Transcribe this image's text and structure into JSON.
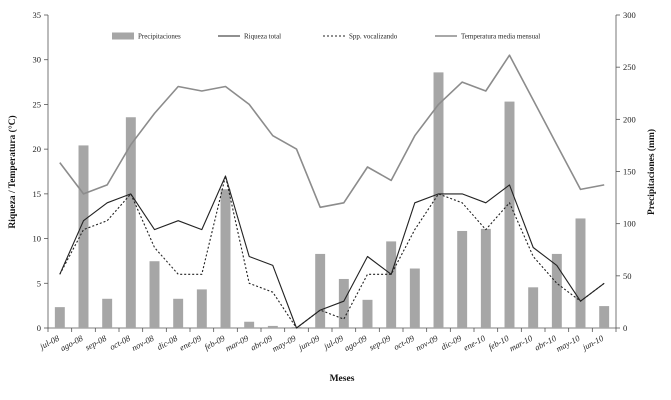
{
  "chart_data": {
    "type": "bar+line",
    "title": "",
    "xlabel": "Meses",
    "ylabel_left": "Riqueza / Temperatura (°C)",
    "ylabel_right": "Precipitaciones (mm)",
    "ylim_left": [
      0,
      35
    ],
    "ylim_right": [
      0,
      300
    ],
    "yticks_left": [
      "0",
      "5",
      "10",
      "15",
      "20",
      "25",
      "30",
      "35"
    ],
    "yticks_right": [
      "0",
      "50",
      "100",
      "150",
      "200",
      "250",
      "300"
    ],
    "legend_position": "top",
    "grid": false,
    "categories": [
      "jul-08",
      "ago-08",
      "sep-08",
      "oct-08",
      "nov-08",
      "dic-08",
      "ene-09",
      "feb-09",
      "mar-09",
      "abr-09",
      "may-09",
      "jun-09",
      "jul-09",
      "ago-09",
      "sep-09",
      "oct-09",
      "nov-09",
      "dic-09",
      "ene-10",
      "feb-10",
      "mar-10",
      "abr-10",
      "may-10",
      "jun-10"
    ],
    "series": [
      {
        "name": "Precipitaciones",
        "kind": "bar",
        "axis": "right",
        "color": "#a6a6a6",
        "values": [
          20,
          175,
          28,
          202,
          64,
          28,
          37,
          133,
          6,
          2,
          1,
          71,
          47,
          27,
          83,
          57,
          245,
          93,
          95,
          217,
          39,
          71,
          105,
          21
        ]
      },
      {
        "name": "Riqueza total",
        "kind": "line",
        "axis": "left",
        "color": "#222222",
        "dash": "",
        "values": [
          6,
          12,
          14,
          15,
          11,
          12,
          11,
          17,
          8,
          7,
          0,
          2,
          3,
          8,
          6,
          14,
          15,
          15,
          14,
          16,
          9,
          7,
          3,
          5
        ]
      },
      {
        "name": "Spp. vocalizando",
        "kind": "line",
        "axis": "left",
        "color": "#222222",
        "dash": "2,2",
        "values": [
          6,
          11,
          12,
          15,
          9,
          6,
          6,
          17,
          5,
          4,
          0,
          2,
          1,
          6,
          6,
          11,
          15,
          14,
          11,
          14,
          8,
          5,
          3,
          5
        ]
      },
      {
        "name": "Temperatura media mensual",
        "kind": "line",
        "axis": "left",
        "color": "#8c8c8c",
        "dash": "",
        "values": [
          18.5,
          15,
          16,
          20.5,
          24,
          27,
          26.5,
          27,
          25,
          21.5,
          20,
          13.5,
          14,
          18,
          16.5,
          21.5,
          25,
          27.5,
          26.5,
          30.5,
          25.5,
          20.5,
          15.5,
          16
        ]
      }
    ]
  }
}
